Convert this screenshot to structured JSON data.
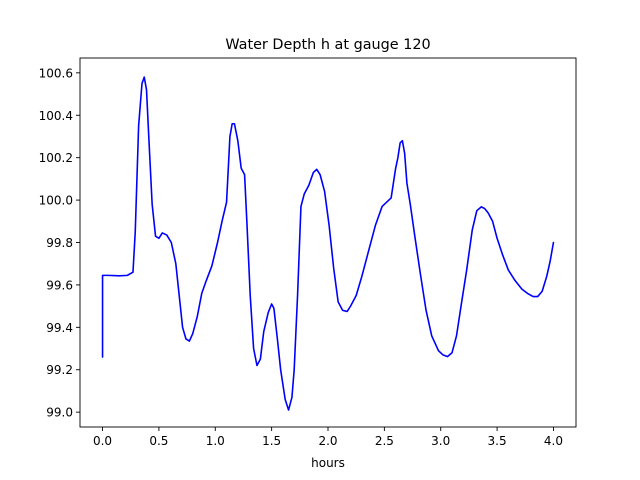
{
  "chart_data": {
    "type": "line",
    "title": "Water Depth h at gauge 120",
    "xlabel": "hours",
    "ylabel": "",
    "xlim": [
      -0.2,
      4.2
    ],
    "ylim": [
      98.93,
      100.67
    ],
    "xticks": [
      0.0,
      0.5,
      1.0,
      1.5,
      2.0,
      2.5,
      3.0,
      3.5,
      4.0
    ],
    "xtick_labels": [
      "0.0",
      "0.5",
      "1.0",
      "1.5",
      "2.0",
      "2.5",
      "3.0",
      "3.5",
      "4.0"
    ],
    "yticks": [
      99.0,
      99.2,
      99.4,
      99.6,
      99.8,
      100.0,
      100.2,
      100.4,
      100.6
    ],
    "ytick_labels": [
      "99.0",
      "99.2",
      "99.4",
      "99.6",
      "99.8",
      "100.0",
      "100.2",
      "100.4",
      "100.6"
    ],
    "grid": false,
    "series": [
      {
        "color": "#0000ff",
        "x": [
          0.0,
          0.0,
          0.05,
          0.15,
          0.22,
          0.27,
          0.29,
          0.32,
          0.35,
          0.37,
          0.39,
          0.41,
          0.44,
          0.47,
          0.5,
          0.53,
          0.57,
          0.61,
          0.65,
          0.68,
          0.71,
          0.74,
          0.77,
          0.8,
          0.84,
          0.88,
          0.92,
          0.97,
          1.02,
          1.06,
          1.1,
          1.13,
          1.15,
          1.17,
          1.2,
          1.23,
          1.26,
          1.28,
          1.31,
          1.34,
          1.37,
          1.4,
          1.43,
          1.47,
          1.5,
          1.52,
          1.55,
          1.58,
          1.62,
          1.65,
          1.68,
          1.7,
          1.73,
          1.76,
          1.79,
          1.83,
          1.87,
          1.9,
          1.93,
          1.97,
          2.01,
          2.05,
          2.09,
          2.13,
          2.17,
          2.2,
          2.25,
          2.3,
          2.36,
          2.42,
          2.48,
          2.52,
          2.56,
          2.58,
          2.6,
          2.62,
          2.64,
          2.66,
          2.68,
          2.7,
          2.73,
          2.77,
          2.82,
          2.87,
          2.92,
          2.98,
          3.02,
          3.06,
          3.1,
          3.14,
          3.18,
          3.23,
          3.28,
          3.32,
          3.36,
          3.39,
          3.42,
          3.46,
          3.5,
          3.55,
          3.6,
          3.66,
          3.72,
          3.77,
          3.82,
          3.86,
          3.9,
          3.94,
          3.97,
          4.0
        ],
        "y": [
          99.26,
          99.645,
          99.645,
          99.643,
          99.645,
          99.66,
          99.85,
          100.35,
          100.55,
          100.58,
          100.52,
          100.3,
          99.98,
          99.83,
          99.82,
          99.845,
          99.835,
          99.8,
          99.7,
          99.55,
          99.4,
          99.345,
          99.335,
          99.37,
          99.45,
          99.56,
          99.62,
          99.69,
          99.8,
          99.9,
          99.99,
          100.3,
          100.36,
          100.36,
          100.28,
          100.15,
          100.12,
          99.9,
          99.55,
          99.3,
          99.22,
          99.25,
          99.38,
          99.47,
          99.51,
          99.49,
          99.35,
          99.2,
          99.06,
          99.01,
          99.07,
          99.2,
          99.55,
          99.97,
          100.03,
          100.07,
          100.13,
          100.145,
          100.12,
          100.04,
          99.88,
          99.68,
          99.52,
          99.48,
          99.475,
          99.5,
          99.55,
          99.64,
          99.76,
          99.88,
          99.97,
          99.99,
          100.01,
          100.08,
          100.15,
          100.2,
          100.27,
          100.28,
          100.22,
          100.08,
          99.98,
          99.83,
          99.65,
          99.48,
          99.36,
          99.29,
          99.27,
          99.262,
          99.28,
          99.36,
          99.5,
          99.67,
          99.86,
          99.95,
          99.968,
          99.96,
          99.94,
          99.9,
          99.82,
          99.74,
          99.67,
          99.62,
          99.58,
          99.56,
          99.545,
          99.545,
          99.57,
          99.64,
          99.71,
          99.8
        ]
      }
    ]
  }
}
